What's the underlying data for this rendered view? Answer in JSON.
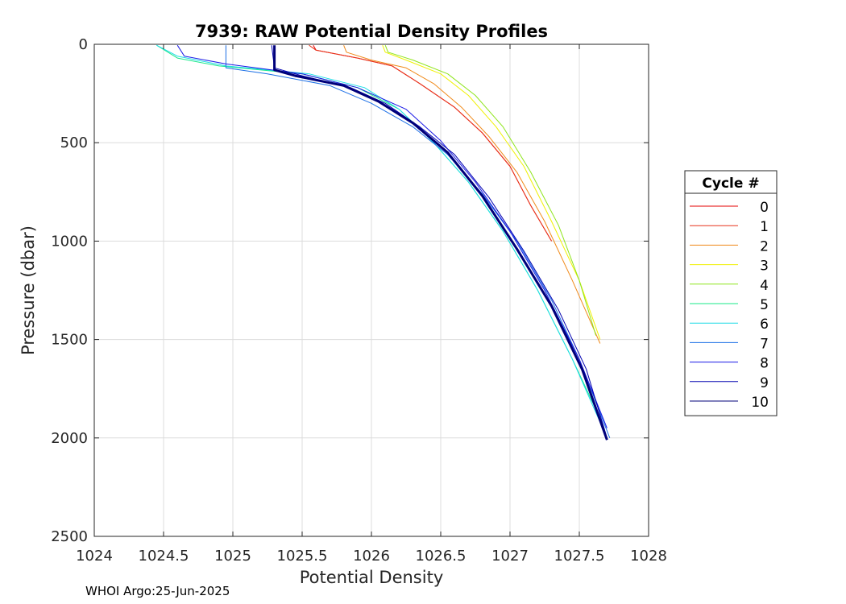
{
  "footer": "WHOI Argo:25-Jun-2025",
  "chart_data": {
    "type": "line",
    "title": "7939: RAW Potential Density Profiles",
    "xlabel": "Potential Density",
    "ylabel": "Pressure (dbar)",
    "xlim": [
      1024,
      1028
    ],
    "ylim": [
      0,
      2500
    ],
    "y_reversed": true,
    "xticks": [
      "1024",
      "1024.5",
      "1025",
      "1025.5",
      "1026",
      "1026.5",
      "1027",
      "1027.5",
      "1028"
    ],
    "yticks": [
      "0",
      "500",
      "1000",
      "1500",
      "2000",
      "2500"
    ],
    "grid": true,
    "legend": {
      "title": "Cycle #",
      "placement": "right"
    },
    "series": [
      {
        "name": "0",
        "color": "#e50000",
        "x": [
          1025.58,
          1025.6,
          1025.9,
          1026.15,
          1026.35,
          1026.6,
          1026.8,
          1027.0,
          1027.15,
          1027.3
        ],
        "y": [
          5,
          30,
          70,
          110,
          200,
          320,
          450,
          620,
          820,
          1000
        ]
      },
      {
        "name": "1",
        "color": "#e8331a",
        "x": [
          1025.55,
          1025.6,
          1025.9,
          1026.15,
          1026.35,
          1026.6,
          1026.8,
          1027.0,
          1027.15,
          1027.3
        ],
        "y": [
          5,
          30,
          70,
          110,
          200,
          320,
          450,
          620,
          820,
          1000
        ]
      },
      {
        "name": "2",
        "color": "#f08a1a",
        "x": [
          1025.8,
          1025.82,
          1026.0,
          1026.25,
          1026.45,
          1026.65,
          1026.85,
          1027.05,
          1027.25,
          1027.45,
          1027.65
        ],
        "y": [
          5,
          40,
          80,
          120,
          200,
          320,
          470,
          650,
          900,
          1200,
          1520
        ]
      },
      {
        "name": "3",
        "color": "#f0f000",
        "x": [
          1026.08,
          1026.1,
          1026.25,
          1026.5,
          1026.7,
          1026.9,
          1027.1,
          1027.3,
          1027.5,
          1027.65
        ],
        "y": [
          5,
          40,
          80,
          150,
          260,
          420,
          620,
          900,
          1200,
          1500
        ]
      },
      {
        "name": "4",
        "color": "#8ee51a",
        "x": [
          1026.1,
          1026.12,
          1026.3,
          1026.55,
          1026.75,
          1026.95,
          1027.15,
          1027.35,
          1027.5,
          1027.62
        ],
        "y": [
          5,
          40,
          80,
          150,
          260,
          420,
          650,
          920,
          1200,
          1480
        ]
      },
      {
        "name": "5",
        "color": "#1ae88a",
        "x": [
          1024.45,
          1024.6,
          1024.9,
          1025.5,
          1025.9,
          1026.2,
          1026.45,
          1026.7,
          1026.95,
          1027.2,
          1027.45,
          1027.65
        ],
        "y": [
          5,
          70,
          110,
          150,
          220,
          330,
          500,
          700,
          950,
          1250,
          1600,
          1900
        ]
      },
      {
        "name": "6",
        "color": "#1adce6",
        "x": [
          1024.45,
          1024.6,
          1024.95,
          1025.55,
          1025.95,
          1026.2,
          1026.45,
          1026.7,
          1026.95,
          1027.2,
          1027.45,
          1027.7
        ],
        "y": [
          5,
          60,
          110,
          150,
          220,
          330,
          500,
          700,
          950,
          1250,
          1600,
          2000
        ]
      },
      {
        "name": "7",
        "color": "#1a6ee6",
        "x": [
          1024.95,
          1024.95,
          1025.25,
          1025.7,
          1026.0,
          1026.3,
          1026.55,
          1026.8,
          1027.05,
          1027.3,
          1027.5,
          1027.72
        ],
        "y": [
          5,
          120,
          150,
          210,
          300,
          420,
          560,
          760,
          1000,
          1300,
          1600,
          2000
        ]
      },
      {
        "name": "8",
        "color": "#1a1ae6",
        "x": [
          1024.6,
          1024.65,
          1024.95,
          1025.5,
          1025.9,
          1026.25,
          1026.5,
          1026.75,
          1027.0,
          1027.25,
          1027.5,
          1027.7
        ],
        "y": [
          5,
          60,
          100,
          150,
          220,
          330,
          490,
          700,
          950,
          1250,
          1600,
          1950
        ]
      },
      {
        "name": "9",
        "color": "#0000b0",
        "x": [
          1025.28,
          1025.3,
          1025.5,
          1025.85,
          1026.1,
          1026.35,
          1026.6,
          1026.85,
          1027.1,
          1027.35,
          1027.55,
          1027.7
        ],
        "y": [
          5,
          120,
          160,
          220,
          300,
          420,
          560,
          780,
          1050,
          1350,
          1650,
          2000
        ]
      },
      {
        "name": "10",
        "color": "#00007a",
        "x": [
          1025.3,
          1025.3,
          1025.45,
          1025.8,
          1026.05,
          1026.3,
          1026.55,
          1026.8,
          1027.05,
          1027.3,
          1027.52,
          1027.7
        ],
        "y": [
          5,
          130,
          160,
          210,
          290,
          400,
          550,
          770,
          1040,
          1330,
          1650,
          2010
        ]
      }
    ]
  }
}
